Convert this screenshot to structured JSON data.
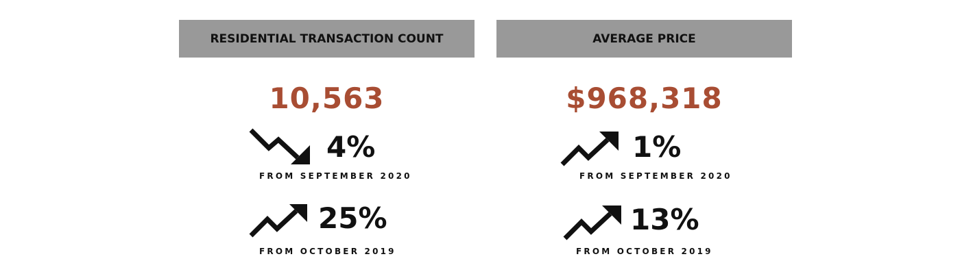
{
  "colors": {
    "header_bg": "#999999",
    "accent_value": "#A84D33",
    "text": "#111111"
  },
  "left_panel": {
    "header": "RESIDENTIAL TRANSACTION COUNT",
    "value": "10,563",
    "changes": [
      {
        "direction": "down",
        "icon": "trend-down-arrow-icon",
        "percent": "4%",
        "caption": "FROM SEPTEMBER 2020"
      },
      {
        "direction": "up",
        "icon": "trend-up-arrow-icon",
        "percent": "25%",
        "caption": "FROM OCTOBER 2019"
      }
    ]
  },
  "right_panel": {
    "header": "AVERAGE PRICE",
    "value": "$968,318",
    "changes": [
      {
        "direction": "up",
        "icon": "trend-up-arrow-icon",
        "percent": "1%",
        "caption": "FROM SEPTEMBER 2020"
      },
      {
        "direction": "up",
        "icon": "trend-up-arrow-icon",
        "percent": "13%",
        "caption": "FROM OCTOBER 2019"
      }
    ]
  }
}
